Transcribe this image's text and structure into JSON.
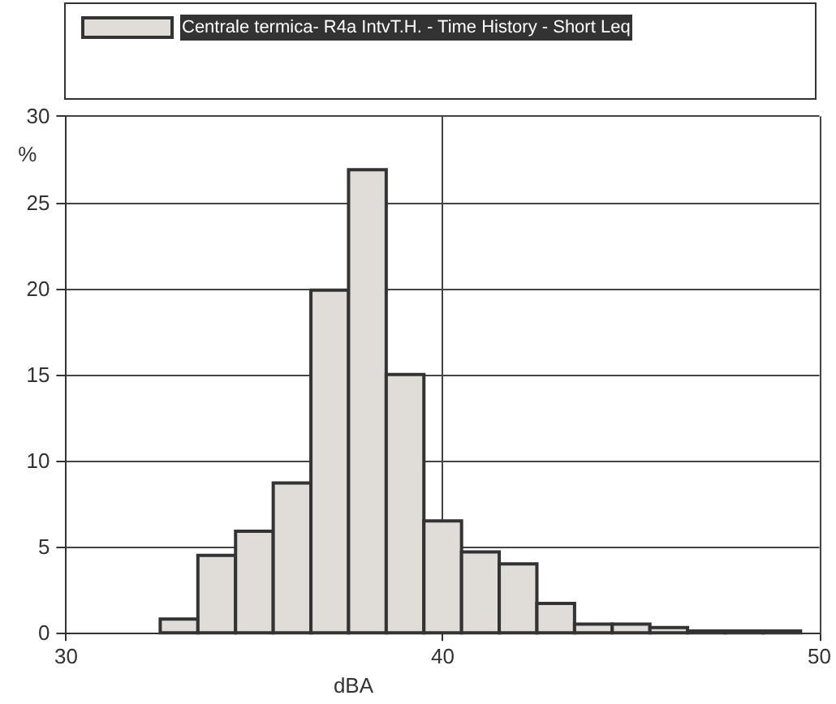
{
  "chart_data": {
    "type": "histogram",
    "xlabel": "dBA",
    "ylabel": "%",
    "bins": [
      32.5,
      33.5,
      34.5,
      35.5,
      36.5,
      37.5,
      38.5,
      39.5,
      40.5,
      41.5,
      42.5,
      43.5,
      44.5,
      45.5,
      46.5,
      47.5,
      48.5,
      49.5
    ],
    "series": [
      {
        "name": "Centrale termica- R4a IntvT.H. - Time History - Short Leq",
        "color": "#e0dcd8",
        "values": [
          0.8,
          4.5,
          5.9,
          8.7,
          19.9,
          26.9,
          15.0,
          6.5,
          4.7,
          4.0,
          1.7,
          0.5,
          0.5,
          0.3,
          0.1,
          0.1,
          0.1
        ]
      }
    ],
    "xlim": [
      30,
      50
    ],
    "xticks": [
      30,
      40,
      50
    ],
    "ylim": [
      0,
      30
    ],
    "yticks": [
      0,
      5,
      10,
      15,
      20,
      25,
      30
    ],
    "grid": true,
    "legend": "top"
  }
}
